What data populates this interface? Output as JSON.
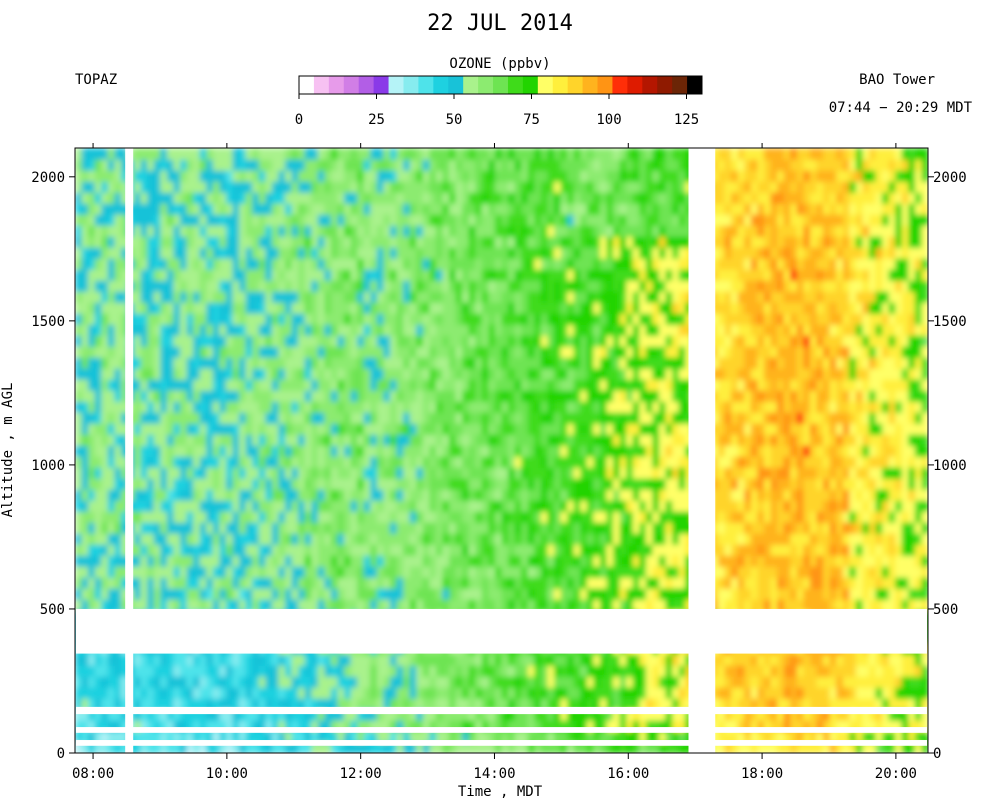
{
  "chart_data": {
    "type": "heatmap",
    "title": "22 JUL 2014",
    "instrument": "TOPAZ",
    "site": "BAO Tower",
    "time_range": "07:44 − 20:29 MDT",
    "xlabel": "Time , MDT",
    "ylabel": "Altitude , m AGL",
    "x_ticks": [
      "08:00",
      "10:00",
      "12:00",
      "14:00",
      "16:00",
      "18:00",
      "20:00"
    ],
    "x_tick_hours": [
      8,
      10,
      12,
      14,
      16,
      18,
      20
    ],
    "y_ticks": [
      0,
      500,
      1000,
      1500,
      2000
    ],
    "xlim_hours": [
      7.73,
      20.48
    ],
    "ylim": [
      0,
      2100
    ],
    "grid": false,
    "colorbar": {
      "label": "OZONE (ppbv)",
      "ticks": [
        0,
        25,
        50,
        75,
        100,
        125
      ],
      "range": [
        0,
        130
      ],
      "colors": [
        "#ffffff",
        "#f7c1f2",
        "#e79bea",
        "#d17ee6",
        "#b25ee6",
        "#8a3ae8",
        "#b5f3f7",
        "#87ecef",
        "#4ee3ea",
        "#1ed1e0",
        "#18c2d8",
        "#a9f28c",
        "#8ceb70",
        "#6ee452",
        "#3fdb1a",
        "#22d400",
        "#ffff66",
        "#ffef3c",
        "#ffd42a",
        "#ffb31e",
        "#ff9414",
        "#ff2e08",
        "#de1b00",
        "#b41600",
        "#8f1a00",
        "#6b2506",
        "#000000"
      ]
    },
    "gaps_x_hours": [
      [
        8.48,
        8.6
      ],
      [
        16.9,
        17.3
      ]
    ],
    "data_gaps_altitude_m": [
      [
        345,
        500
      ],
      [
        135,
        160
      ],
      [
        70,
        90
      ],
      [
        25,
        45
      ]
    ],
    "typical_ozone_ppbv": [
      {
        "period": "08:00–10:30",
        "altitude": "0–500 m",
        "value": 45
      },
      {
        "period": "08:00–12:30",
        "altitude": "500–2100 m",
        "value": 55
      },
      {
        "period": "12:30–15:00",
        "altitude": "500–2100 m",
        "value": 65
      },
      {
        "period": "15:00–17:00",
        "altitude": "500–1800 m",
        "value": 78
      },
      {
        "period": "17:20–19:30",
        "altitude": "500–2100 m",
        "value": 90
      },
      {
        "period": "19:30–20:30",
        "altitude": "0–2100 m",
        "value": 80
      }
    ]
  }
}
